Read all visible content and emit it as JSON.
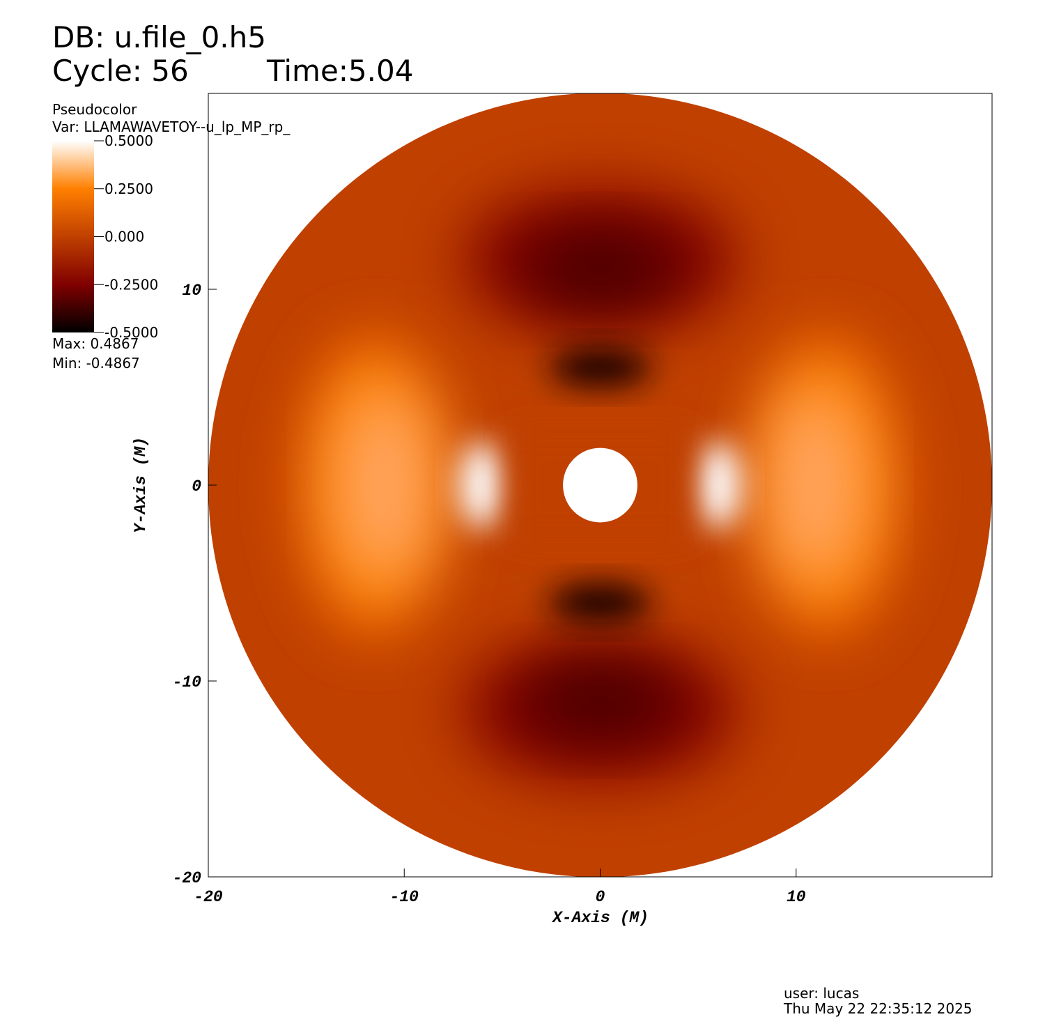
{
  "chart_data": {
    "type": "pseudocolor",
    "db_label": "DB: u.file_0.h5",
    "cycle_label": "Cycle: 56",
    "time_label": "Time:5.04",
    "plot_name": "Pseudocolor",
    "var_label": "Var: LLAMAWAVETOY--u_lp_MP_rp_",
    "colormap": [
      "#000000",
      "#800000",
      "#c04000",
      "#ff8000",
      "#ffffff"
    ],
    "clim": [
      -0.5,
      0.5
    ],
    "cticks": [
      {
        "value": 0.5,
        "label": "0.5000"
      },
      {
        "value": 0.25,
        "label": "0.2500"
      },
      {
        "value": 0,
        "label": "0.000"
      },
      {
        "value": -0.25,
        "label": "-0.2500"
      },
      {
        "value": -0.5,
        "label": "-0.5000"
      }
    ],
    "max_label": "Max:  0.4867",
    "min_label": "Min: -0.4867",
    "xlabel": "X-Axis (M)",
    "ylabel": "Y-Axis (M)",
    "xlim": [
      -20,
      20
    ],
    "ylim": [
      -20,
      20
    ],
    "xticks": [
      -20,
      -10,
      0,
      10
    ],
    "yticks": [
      -20,
      -10,
      0,
      10
    ],
    "user_label": "user: lucas",
    "date_label": "Thu May 22 22:35:12 2025"
  }
}
